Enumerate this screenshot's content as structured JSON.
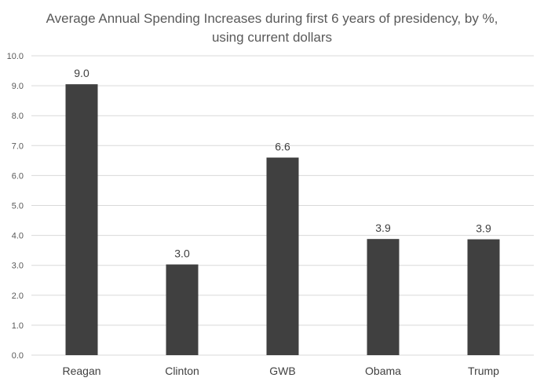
{
  "chart_data": {
    "type": "bar",
    "title": "Average Annual Spending Increases during first 6 years of presidency, by %, using current dollars",
    "categories": [
      "Reagan",
      "Clinton",
      "GWB",
      "Obama",
      "Trump"
    ],
    "values": [
      9.05,
      3.03,
      6.6,
      3.88,
      3.87
    ],
    "data_labels": [
      "9.0",
      "3.0",
      "6.6",
      "3.9",
      "3.9"
    ],
    "ylim": [
      0,
      10
    ],
    "yticks": [
      "0.0",
      "1.0",
      "2.0",
      "3.0",
      "4.0",
      "5.0",
      "6.0",
      "7.0",
      "8.0",
      "9.0",
      "10.0"
    ],
    "grid": true,
    "legend": "none",
    "bar_color": "#404040",
    "grid_color": "#d9d9d9"
  }
}
